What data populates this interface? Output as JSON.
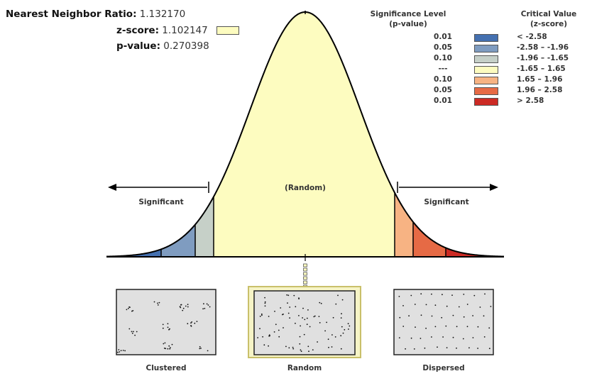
{
  "stats": {
    "ratio_label": "Nearest Neighbor Ratio:",
    "ratio_value": "1.132170",
    "z_label": "z-score:",
    "z_value": "1.102147",
    "p_label": "p-value:",
    "p_value": "0.270398",
    "z_swatch_color": "#fdfcc0"
  },
  "legend": {
    "sig_header_line1": "Significance Level",
    "sig_header_line2": "(p-value)",
    "crit_header_line1": "Critical Value",
    "crit_header_line2": "(z-score)",
    "rows": [
      {
        "p": "0.01",
        "z": "< -2.58",
        "color": "#4470b0"
      },
      {
        "p": "0.05",
        "z": "-2.58 – -1.96",
        "color": "#7f9cc0"
      },
      {
        "p": "0.10",
        "z": "-1.96 – -1.65",
        "color": "#c6d0c8"
      },
      {
        "p": "---",
        "z": "-1.65 – 1.65",
        "color": "#fdfcc0"
      },
      {
        "p": "0.10",
        "z": "1.65 – 1.96",
        "color": "#f7b383"
      },
      {
        "p": "0.05",
        "z": "1.96 – 2.58",
        "color": "#e66a45"
      },
      {
        "p": "0.01",
        "z": "> 2.58",
        "color": "#cc2a24"
      }
    ]
  },
  "curve": {
    "left_label": "Significant",
    "center_label": "(Random)",
    "right_label": "Significant",
    "z_score": 1.102147
  },
  "panels": [
    {
      "label": "Clustered"
    },
    {
      "label": "Random"
    },
    {
      "label": "Dispersed"
    }
  ]
}
